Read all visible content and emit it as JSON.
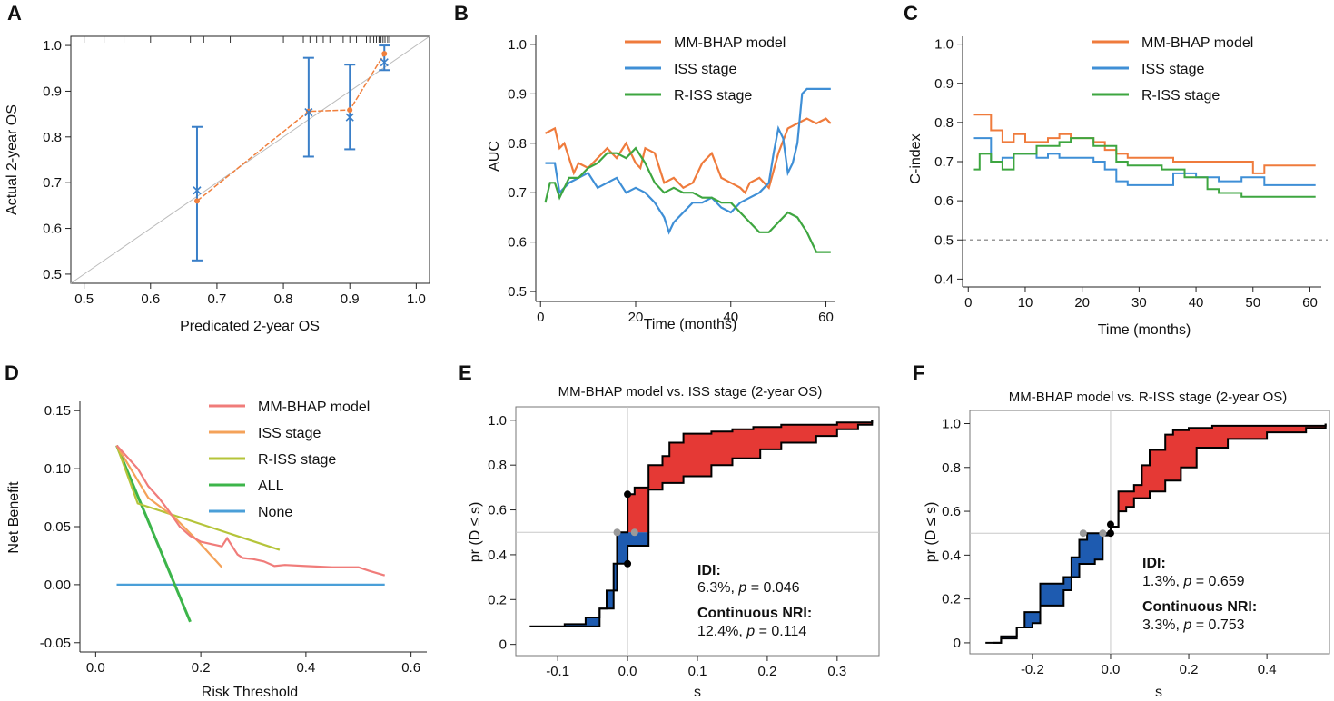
{
  "chart_data": [
    {
      "id": "A",
      "letter": "A",
      "type": "scatter",
      "title": "",
      "xlabel": "Predicated 2-year OS",
      "ylabel": "Actual 2-year OS",
      "xlim": [
        0.48,
        1.02
      ],
      "ylim": [
        0.48,
        1.02
      ],
      "xticks": [
        "0.5",
        "0.6",
        "0.7",
        "0.8",
        "0.9",
        "1.0"
      ],
      "yticks": [
        "0.5",
        "0.6",
        "0.7",
        "0.8",
        "0.9",
        "1.0"
      ],
      "colors": {
        "observed": "#f07f3c",
        "corrected": "#3a7fc8",
        "ideal": "#bbbbbb"
      },
      "points": [
        {
          "pred": 0.67,
          "observed": 0.66,
          "corrected": 0.683,
          "ci_low": 0.53,
          "ci_high": 0.822
        },
        {
          "pred": 0.838,
          "observed": 0.856,
          "corrected": 0.854,
          "ci_low": 0.757,
          "ci_high": 0.973
        },
        {
          "pred": 0.9,
          "observed": 0.859,
          "corrected": 0.843,
          "ci_low": 0.773,
          "ci_high": 0.958
        },
        {
          "pred": 0.952,
          "observed": 0.982,
          "corrected": 0.963,
          "ci_low": 0.946,
          "ci_high": 1.0
        }
      ],
      "rug_x": [
        0.96,
        0.957,
        0.953,
        0.95,
        0.947,
        0.944,
        0.94,
        0.936,
        0.93,
        0.925,
        0.91,
        0.9,
        0.89,
        0.87,
        0.86,
        0.85,
        0.84,
        0.83,
        0.8,
        0.72,
        0.68,
        0.66,
        0.6,
        0.56,
        0.53,
        0.5
      ]
    },
    {
      "id": "B",
      "letter": "B",
      "type": "line",
      "title": "",
      "xlabel": "Time (months)",
      "ylabel": "AUC",
      "xlim": [
        -1,
        62
      ],
      "ylim": [
        0.48,
        1.02
      ],
      "xticks": [
        "0",
        "20",
        "40",
        "60"
      ],
      "yticks": [
        "0.5",
        "0.6",
        "0.7",
        "0.8",
        "0.9",
        "1.0"
      ],
      "legend": [
        "MM-BHAP model",
        "ISS stage",
        "R-ISS stage"
      ],
      "series": [
        {
          "name": "MM-BHAP model",
          "color": "#ef7b3c",
          "x": [
            1,
            3,
            4,
            5,
            6,
            7,
            8,
            10,
            12,
            14,
            16,
            18,
            20,
            21,
            22,
            24,
            26,
            28,
            30,
            32,
            34,
            36,
            38,
            40,
            42,
            43,
            44,
            46,
            48,
            50,
            52,
            54,
            56,
            58,
            60,
            61
          ],
          "y": [
            0.82,
            0.83,
            0.79,
            0.8,
            0.77,
            0.74,
            0.76,
            0.75,
            0.77,
            0.79,
            0.77,
            0.8,
            0.76,
            0.75,
            0.79,
            0.78,
            0.72,
            0.73,
            0.71,
            0.72,
            0.76,
            0.78,
            0.73,
            0.72,
            0.71,
            0.7,
            0.72,
            0.73,
            0.71,
            0.78,
            0.83,
            0.84,
            0.85,
            0.84,
            0.85,
            0.84
          ]
        },
        {
          "name": "ISS stage",
          "color": "#3f8fd6",
          "x": [
            1,
            3,
            4,
            5,
            6,
            8,
            10,
            12,
            14,
            16,
            18,
            20,
            22,
            24,
            26,
            27,
            28,
            30,
            32,
            34,
            36,
            38,
            40,
            42,
            44,
            46,
            48,
            49,
            50,
            51,
            52,
            53,
            54,
            55,
            56,
            58,
            60,
            61
          ],
          "y": [
            0.76,
            0.76,
            0.7,
            0.71,
            0.72,
            0.73,
            0.74,
            0.71,
            0.72,
            0.73,
            0.7,
            0.71,
            0.7,
            0.68,
            0.65,
            0.62,
            0.64,
            0.66,
            0.68,
            0.68,
            0.69,
            0.67,
            0.66,
            0.68,
            0.69,
            0.7,
            0.72,
            0.78,
            0.83,
            0.81,
            0.74,
            0.76,
            0.8,
            0.9,
            0.91,
            0.91,
            0.91,
            0.91
          ]
        },
        {
          "name": "R-ISS stage",
          "color": "#3ea640",
          "x": [
            1,
            2,
            3,
            4,
            6,
            8,
            10,
            12,
            14,
            16,
            18,
            20,
            22,
            24,
            26,
            28,
            30,
            32,
            34,
            36,
            38,
            40,
            42,
            44,
            46,
            48,
            50,
            52,
            54,
            56,
            58,
            60,
            61
          ],
          "y": [
            0.68,
            0.72,
            0.72,
            0.69,
            0.73,
            0.73,
            0.75,
            0.76,
            0.78,
            0.78,
            0.77,
            0.79,
            0.76,
            0.72,
            0.7,
            0.71,
            0.7,
            0.7,
            0.69,
            0.69,
            0.68,
            0.68,
            0.66,
            0.64,
            0.62,
            0.62,
            0.64,
            0.66,
            0.65,
            0.62,
            0.58,
            0.58,
            0.58
          ]
        }
      ]
    },
    {
      "id": "C",
      "letter": "C",
      "type": "line",
      "title": "",
      "xlabel": "Time (months)",
      "ylabel": "C-index",
      "xlim": [
        -1,
        62
      ],
      "ylim": [
        0.38,
        1.02
      ],
      "xticks": [
        "0",
        "10",
        "20",
        "30",
        "40",
        "50",
        "60"
      ],
      "yticks": [
        "0.4",
        "0.5",
        "0.6",
        "0.7",
        "0.8",
        "0.9",
        "1.0"
      ],
      "reference_y": 0.5,
      "legend": [
        "MM-BHAP model",
        "ISS stage",
        "R-ISS stage"
      ],
      "series": [
        {
          "name": "MM-BHAP model",
          "color": "#ef7b3c",
          "x": [
            1,
            3,
            4,
            6,
            8,
            10,
            12,
            14,
            16,
            18,
            20,
            22,
            24,
            26,
            28,
            32,
            36,
            40,
            44,
            48,
            50,
            52,
            61
          ],
          "y": [
            0.82,
            0.82,
            0.78,
            0.75,
            0.77,
            0.75,
            0.75,
            0.76,
            0.77,
            0.76,
            0.76,
            0.75,
            0.73,
            0.72,
            0.71,
            0.71,
            0.7,
            0.7,
            0.7,
            0.7,
            0.67,
            0.69,
            0.69
          ]
        },
        {
          "name": "ISS stage",
          "color": "#3f8fd6",
          "x": [
            1,
            3,
            4,
            6,
            8,
            10,
            12,
            14,
            16,
            18,
            20,
            22,
            24,
            26,
            28,
            32,
            36,
            40,
            44,
            48,
            52,
            61
          ],
          "y": [
            0.76,
            0.76,
            0.7,
            0.71,
            0.72,
            0.72,
            0.71,
            0.72,
            0.71,
            0.71,
            0.71,
            0.7,
            0.68,
            0.65,
            0.64,
            0.64,
            0.67,
            0.66,
            0.65,
            0.66,
            0.64,
            0.64
          ]
        },
        {
          "name": "R-ISS stage",
          "color": "#3ea640",
          "x": [
            1,
            2,
            4,
            6,
            8,
            10,
            12,
            14,
            16,
            18,
            20,
            22,
            24,
            26,
            28,
            30,
            34,
            38,
            40,
            42,
            44,
            48,
            61
          ],
          "y": [
            0.68,
            0.72,
            0.7,
            0.68,
            0.72,
            0.72,
            0.74,
            0.74,
            0.75,
            0.76,
            0.76,
            0.74,
            0.74,
            0.7,
            0.69,
            0.69,
            0.68,
            0.66,
            0.66,
            0.63,
            0.62,
            0.61,
            0.61
          ]
        }
      ]
    },
    {
      "id": "D",
      "letter": "D",
      "type": "line",
      "title": "",
      "xlabel": "Risk Threshold",
      "ylabel": "Net Benefit",
      "xlim": [
        -0.03,
        0.63
      ],
      "ylim": [
        -0.058,
        0.158
      ],
      "xticks": [
        "0.0",
        "0.2",
        "0.4",
        "0.6"
      ],
      "yticks": [
        "-0.05",
        "0.00",
        "0.05",
        "0.10",
        "0.15"
      ],
      "legend": [
        "MM-BHAP model",
        "ISS stage",
        "R-ISS stage",
        "ALL",
        "None"
      ],
      "series": [
        {
          "name": "MM-BHAP model",
          "color": "#f07c7a",
          "x": [
            0.04,
            0.06,
            0.08,
            0.1,
            0.12,
            0.14,
            0.16,
            0.18,
            0.2,
            0.22,
            0.23,
            0.24,
            0.25,
            0.26,
            0.27,
            0.28,
            0.3,
            0.32,
            0.34,
            0.36,
            0.4,
            0.45,
            0.5,
            0.52,
            0.55
          ],
          "y": [
            0.12,
            0.11,
            0.1,
            0.085,
            0.075,
            0.063,
            0.05,
            0.042,
            0.037,
            0.035,
            0.034,
            0.033,
            0.04,
            0.033,
            0.026,
            0.023,
            0.022,
            0.02,
            0.016,
            0.017,
            0.016,
            0.015,
            0.015,
            0.012,
            0.008
          ]
        },
        {
          "name": "ISS stage",
          "color": "#f4a259",
          "x": [
            0.04,
            0.1,
            0.15,
            0.2,
            0.24
          ],
          "y": [
            0.12,
            0.075,
            0.058,
            0.035,
            0.015
          ]
        },
        {
          "name": "R-ISS stage",
          "color": "#b5c43a",
          "x": [
            0.04,
            0.08,
            0.35
          ],
          "y": [
            0.12,
            0.07,
            0.03
          ]
        },
        {
          "name": "ALL",
          "color": "#3cb54a",
          "x": [
            0.04,
            0.18
          ],
          "y": [
            0.12,
            -0.032
          ]
        },
        {
          "name": "None",
          "color": "#4a9fd8",
          "x": [
            0.04,
            0.55
          ],
          "y": [
            0.0,
            0.0
          ]
        }
      ]
    },
    {
      "id": "E",
      "letter": "E",
      "type": "area",
      "title": "MM-BHAP model vs. ISS stage (2-year OS)",
      "xlabel": "s",
      "ylabel": "pr (D ≤ s)",
      "xlim": [
        -0.16,
        0.36
      ],
      "ylim": [
        -0.05,
        1.06
      ],
      "xticks": [
        "-0.1",
        "0.0",
        "0.1",
        "0.2",
        "0.3"
      ],
      "yticks": [
        "0",
        "0.2",
        "0.4",
        "0.6",
        "0.8",
        "1.0"
      ],
      "fill_colors": {
        "positive": "#e53935",
        "negative": "#1e5bb0"
      },
      "curve_events": {
        "x": [
          -0.14,
          -0.12,
          -0.09,
          -0.06,
          -0.04,
          -0.03,
          -0.015,
          0.0,
          0.03,
          0.05,
          0.08,
          0.12,
          0.15,
          0.19,
          0.22,
          0.27,
          0.3,
          0.33,
          0.35
        ],
        "y": [
          0.08,
          0.08,
          0.09,
          0.12,
          0.16,
          0.24,
          0.36,
          0.44,
          0.69,
          0.72,
          0.75,
          0.8,
          0.83,
          0.87,
          0.9,
          0.93,
          0.96,
          0.98,
          1.0
        ]
      },
      "curve_nonevents": {
        "x": [
          -0.14,
          -0.04,
          -0.02,
          -0.015,
          0.0,
          0.01,
          0.03,
          0.05,
          0.06,
          0.08,
          0.12,
          0.15,
          0.18,
          0.22,
          0.25,
          0.3,
          0.33,
          0.35
        ],
        "y": [
          0.08,
          0.16,
          0.36,
          0.5,
          0.67,
          0.7,
          0.8,
          0.84,
          0.9,
          0.94,
          0.95,
          0.96,
          0.97,
          0.98,
          0.98,
          0.99,
          0.99,
          1.0
        ]
      },
      "markers": [
        {
          "x": 0.0,
          "y": 0.67,
          "kind": "black"
        },
        {
          "x": 0.0,
          "y": 0.36,
          "kind": "black"
        },
        {
          "x": -0.015,
          "y": 0.5,
          "kind": "grey"
        },
        {
          "x": 0.01,
          "y": 0.5,
          "kind": "grey"
        }
      ],
      "annotation": {
        "idi_label": "IDI:",
        "idi_value": "6.3%, ",
        "idi_p_label": "p",
        "idi_p_value": " = 0.046",
        "nri_label": "Continuous NRI:",
        "nri_value": "12.4%, ",
        "nri_p_label": "p",
        "nri_p_value": " = 0.114"
      }
    },
    {
      "id": "F",
      "letter": "F",
      "type": "area",
      "title": "MM-BHAP model vs. R-ISS stage (2-year OS)",
      "xlabel": "s",
      "ylabel": "pr (D ≤ s)",
      "xlim": [
        -0.36,
        0.56
      ],
      "ylim": [
        -0.05,
        1.06
      ],
      "xticks": [
        "-0.2",
        "0.0",
        "0.2",
        "0.4"
      ],
      "yticks": [
        "0",
        "0.2",
        "0.4",
        "0.6",
        "0.8",
        "1.0"
      ],
      "fill_colors": {
        "positive": "#e53935",
        "negative": "#1e5bb0"
      },
      "curve_events": {
        "x": [
          -0.32,
          -0.28,
          -0.24,
          -0.2,
          -0.18,
          -0.12,
          -0.1,
          -0.08,
          -0.06,
          -0.04,
          -0.02,
          0.0,
          0.02,
          0.04,
          0.06,
          0.1,
          0.14,
          0.18,
          0.22,
          0.3,
          0.4,
          0.5,
          0.55
        ],
        "y": [
          0.0,
          0.02,
          0.07,
          0.09,
          0.27,
          0.3,
          0.39,
          0.47,
          0.5,
          0.5,
          0.5,
          0.53,
          0.6,
          0.62,
          0.66,
          0.69,
          0.74,
          0.8,
          0.89,
          0.93,
          0.96,
          0.98,
          1.0
        ]
      },
      "curve_nonevents": {
        "x": [
          -0.3,
          -0.28,
          -0.24,
          -0.22,
          -0.18,
          -0.12,
          -0.1,
          -0.08,
          -0.04,
          -0.02,
          0.0,
          0.02,
          0.06,
          0.08,
          0.1,
          0.14,
          0.16,
          0.2,
          0.26,
          0.3,
          0.55
        ],
        "y": [
          0.0,
          0.03,
          0.07,
          0.14,
          0.17,
          0.24,
          0.3,
          0.36,
          0.38,
          0.49,
          0.53,
          0.69,
          0.72,
          0.81,
          0.88,
          0.95,
          0.97,
          0.98,
          0.99,
          0.99,
          1.0
        ]
      },
      "markers": [
        {
          "x": 0.0,
          "y": 0.54,
          "kind": "black"
        },
        {
          "x": 0.0,
          "y": 0.5,
          "kind": "black"
        },
        {
          "x": -0.07,
          "y": 0.5,
          "kind": "grey"
        },
        {
          "x": -0.02,
          "y": 0.5,
          "kind": "grey"
        }
      ],
      "annotation": {
        "idi_label": "IDI:",
        "idi_value": "1.3%, ",
        "idi_p_label": "p",
        "idi_p_value": " = 0.659",
        "nri_label": "Continuous NRI:",
        "nri_value": "3.3%, ",
        "nri_p_label": "p",
        "nri_p_value": " = 0.753"
      }
    }
  ]
}
